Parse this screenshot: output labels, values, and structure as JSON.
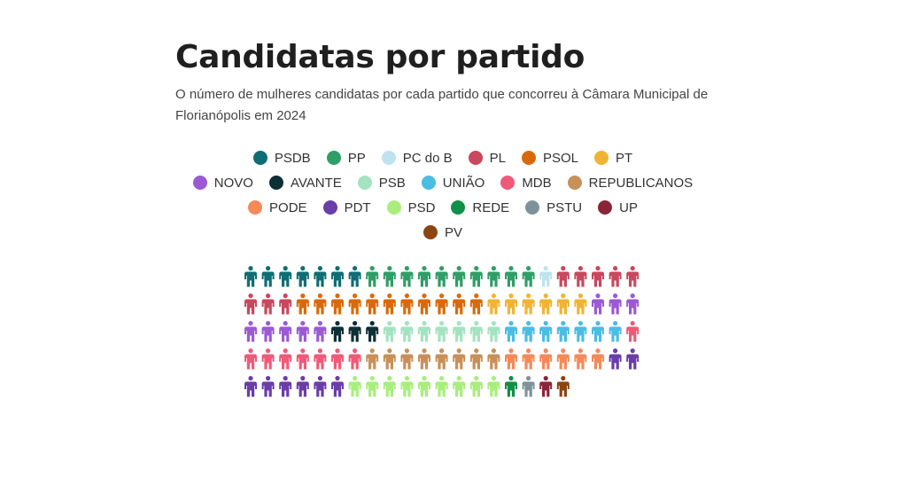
{
  "title": "Candidatas por partido",
  "subtitle": "O número de mulheres candidatas por cada partido que concorreu à Câmara Municipal de Florianópolis em 2024",
  "chart_data": {
    "type": "waffle",
    "title": "Candidatas por partido",
    "unit": "candidata",
    "per_row": 23,
    "legend_placement": "top",
    "series": [
      {
        "name": "PSDB",
        "color": "#0f6d74",
        "value": 7
      },
      {
        "name": "PP",
        "color": "#2f9e67",
        "value": 10
      },
      {
        "name": "PC do B",
        "color": "#bfe3ee",
        "value": 1
      },
      {
        "name": "PL",
        "color": "#c8485e",
        "value": 8
      },
      {
        "name": "PSOL",
        "color": "#d96a0b",
        "value": 11
      },
      {
        "name": "PT",
        "color": "#f0b435",
        "value": 6
      },
      {
        "name": "NOVO",
        "color": "#9b5ad4",
        "value": 8
      },
      {
        "name": "AVANTE",
        "color": "#0d2f35",
        "value": 3
      },
      {
        "name": "PSB",
        "color": "#a4e3c2",
        "value": 7
      },
      {
        "name": "UNIÃO",
        "color": "#4bbde3",
        "value": 7
      },
      {
        "name": "MDB",
        "color": "#ef5a78",
        "value": 8
      },
      {
        "name": "REPUBLICANOS",
        "color": "#c89059",
        "value": 8
      },
      {
        "name": "PODE",
        "color": "#f58958",
        "value": 6
      },
      {
        "name": "PDT",
        "color": "#6a3da8",
        "value": 8
      },
      {
        "name": "PSD",
        "color": "#a8ee7c",
        "value": 9
      },
      {
        "name": "REDE",
        "color": "#0f8f47",
        "value": 1
      },
      {
        "name": "PSTU",
        "color": "#7f929b",
        "value": 1
      },
      {
        "name": "UP",
        "color": "#8a2539",
        "value": 1
      },
      {
        "name": "PV",
        "color": "#8b4511",
        "value": 1
      }
    ]
  }
}
